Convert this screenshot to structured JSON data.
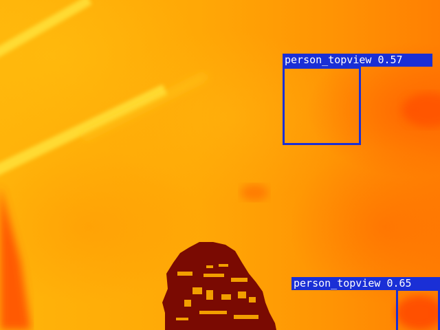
{
  "image": {
    "description": "",
    "colors": {
      "background_warm": "#ffa806",
      "hot_streak": "#ffe030",
      "edge_red": "#ff4a00",
      "dark_object": "#7a0a02",
      "box": "#1a2fd6",
      "label_text": "#ffffff"
    }
  },
  "detections": [
    {
      "class": "person_topview",
      "score": "0.57",
      "label": "person_topview 0.57"
    },
    {
      "class": "person_topview",
      "score": "0.65",
      "label": "person_topview 0.65"
    }
  ]
}
